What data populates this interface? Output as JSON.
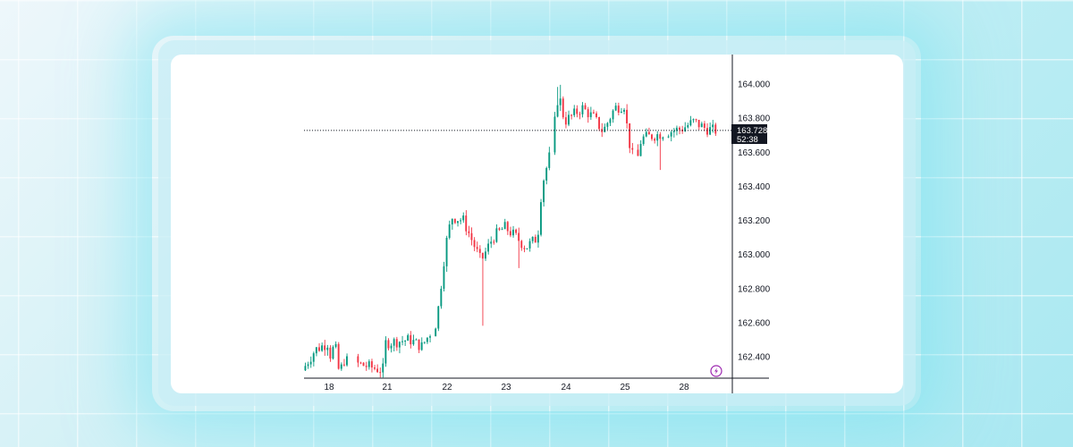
{
  "chart_data": {
    "type": "candlestick",
    "title": "",
    "xlabel": "",
    "ylabel": "",
    "x_ticks": [
      "18",
      "21",
      "22",
      "23",
      "24",
      "25",
      "28"
    ],
    "y_ticks": [
      "162.400",
      "162.600",
      "162.800",
      "163.000",
      "163.200",
      "163.400",
      "163.600",
      "163.800",
      "164.000"
    ],
    "ylim": [
      162.3,
      164.05
    ],
    "current_price": {
      "value": "163.728",
      "countdown": "52:38"
    },
    "colors": {
      "up": "#089981",
      "down": "#f23645",
      "axis": "#131722",
      "label_bg": "#131722"
    },
    "icon": "lightning-bolt-icon",
    "path_points": [
      {
        "d": 17.5,
        "v": 162.32
      },
      {
        "d": 17.75,
        "v": 162.44
      },
      {
        "d": 18.0,
        "v": 162.48
      },
      {
        "d": 18.2,
        "v": 162.38
      },
      {
        "d": 18.35,
        "v": 162.5
      },
      {
        "d": 18.6,
        "v": 162.3
      },
      {
        "d": 18.85,
        "v": 162.38
      },
      {
        "d": 20.85,
        "v": 162.32
      },
      {
        "d": 21.0,
        "v": 162.48
      },
      {
        "d": 21.4,
        "v": 162.5
      },
      {
        "d": 21.6,
        "v": 162.46
      },
      {
        "d": 21.85,
        "v": 162.6
      },
      {
        "d": 22.0,
        "v": 163.05
      },
      {
        "d": 22.1,
        "v": 163.22
      },
      {
        "d": 22.3,
        "v": 163.2
      },
      {
        "d": 22.45,
        "v": 163.08
      },
      {
        "d": 22.6,
        "v": 162.96
      },
      {
        "d": 22.8,
        "v": 163.1
      },
      {
        "d": 23.0,
        "v": 163.16
      },
      {
        "d": 23.2,
        "v": 163.1
      },
      {
        "d": 23.35,
        "v": 163.04
      },
      {
        "d": 23.55,
        "v": 163.1
      },
      {
        "d": 23.62,
        "v": 163.4
      },
      {
        "d": 23.78,
        "v": 163.62
      },
      {
        "d": 23.9,
        "v": 163.95
      },
      {
        "d": 24.0,
        "v": 163.78
      },
      {
        "d": 24.3,
        "v": 163.86
      },
      {
        "d": 24.5,
        "v": 163.8
      },
      {
        "d": 24.65,
        "v": 163.72
      },
      {
        "d": 24.85,
        "v": 163.86
      },
      {
        "d": 25.1,
        "v": 163.88
      },
      {
        "d": 25.2,
        "v": 163.7
      },
      {
        "d": 25.45,
        "v": 163.58
      },
      {
        "d": 25.6,
        "v": 163.52
      },
      {
        "d": 25.75,
        "v": 163.58
      },
      {
        "d": 25.9,
        "v": 163.68
      },
      {
        "d": 28.0,
        "v": 163.74
      },
      {
        "d": 28.2,
        "v": 163.78
      },
      {
        "d": 28.4,
        "v": 163.74
      },
      {
        "d": 28.55,
        "v": 163.728
      }
    ]
  }
}
